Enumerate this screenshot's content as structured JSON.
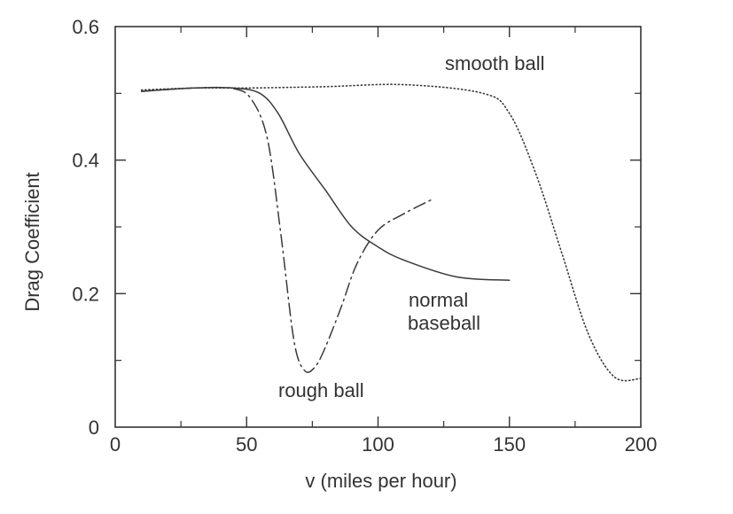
{
  "chart_data": {
    "type": "line",
    "xlabel": "v (miles per hour)",
    "ylabel": "Drag Coefficient",
    "xlim": [
      0,
      200
    ],
    "ylim": [
      0,
      0.6
    ],
    "grid": false,
    "x_ticks": [
      0,
      50,
      100,
      150,
      200
    ],
    "x_tick_labels": [
      "0",
      "50",
      "100",
      "150",
      "200"
    ],
    "y_ticks": [
      0,
      0.2,
      0.4,
      0.6
    ],
    "y_tick_labels": [
      "0",
      "0.2",
      "0.4",
      "0.6"
    ],
    "series": [
      {
        "name": "smooth ball",
        "style": "dotted",
        "x": [
          10,
          30,
          50,
          80,
          110,
          140,
          150,
          160,
          170,
          180,
          190,
          200
        ],
        "y": [
          0.505,
          0.508,
          0.508,
          0.51,
          0.513,
          0.5,
          0.47,
          0.38,
          0.26,
          0.14,
          0.075,
          0.073
        ]
      },
      {
        "name": "normal baseball",
        "style": "solid",
        "x": [
          10,
          30,
          45,
          55,
          62,
          70,
          80,
          90,
          100,
          110,
          130,
          150
        ],
        "y": [
          0.503,
          0.508,
          0.508,
          0.5,
          0.47,
          0.41,
          0.355,
          0.3,
          0.27,
          0.25,
          0.225,
          0.22
        ]
      },
      {
        "name": "rough ball",
        "style": "dash-dot",
        "x": [
          10,
          30,
          45,
          52,
          58,
          63,
          68,
          72,
          76,
          80,
          86,
          92,
          100,
          110,
          120
        ],
        "y": [
          0.503,
          0.508,
          0.507,
          0.49,
          0.43,
          0.29,
          0.13,
          0.085,
          0.09,
          0.12,
          0.18,
          0.245,
          0.295,
          0.32,
          0.34
        ]
      }
    ],
    "annotations": [
      "smooth ball",
      "normal",
      "baseball",
      "rough ball"
    ]
  }
}
